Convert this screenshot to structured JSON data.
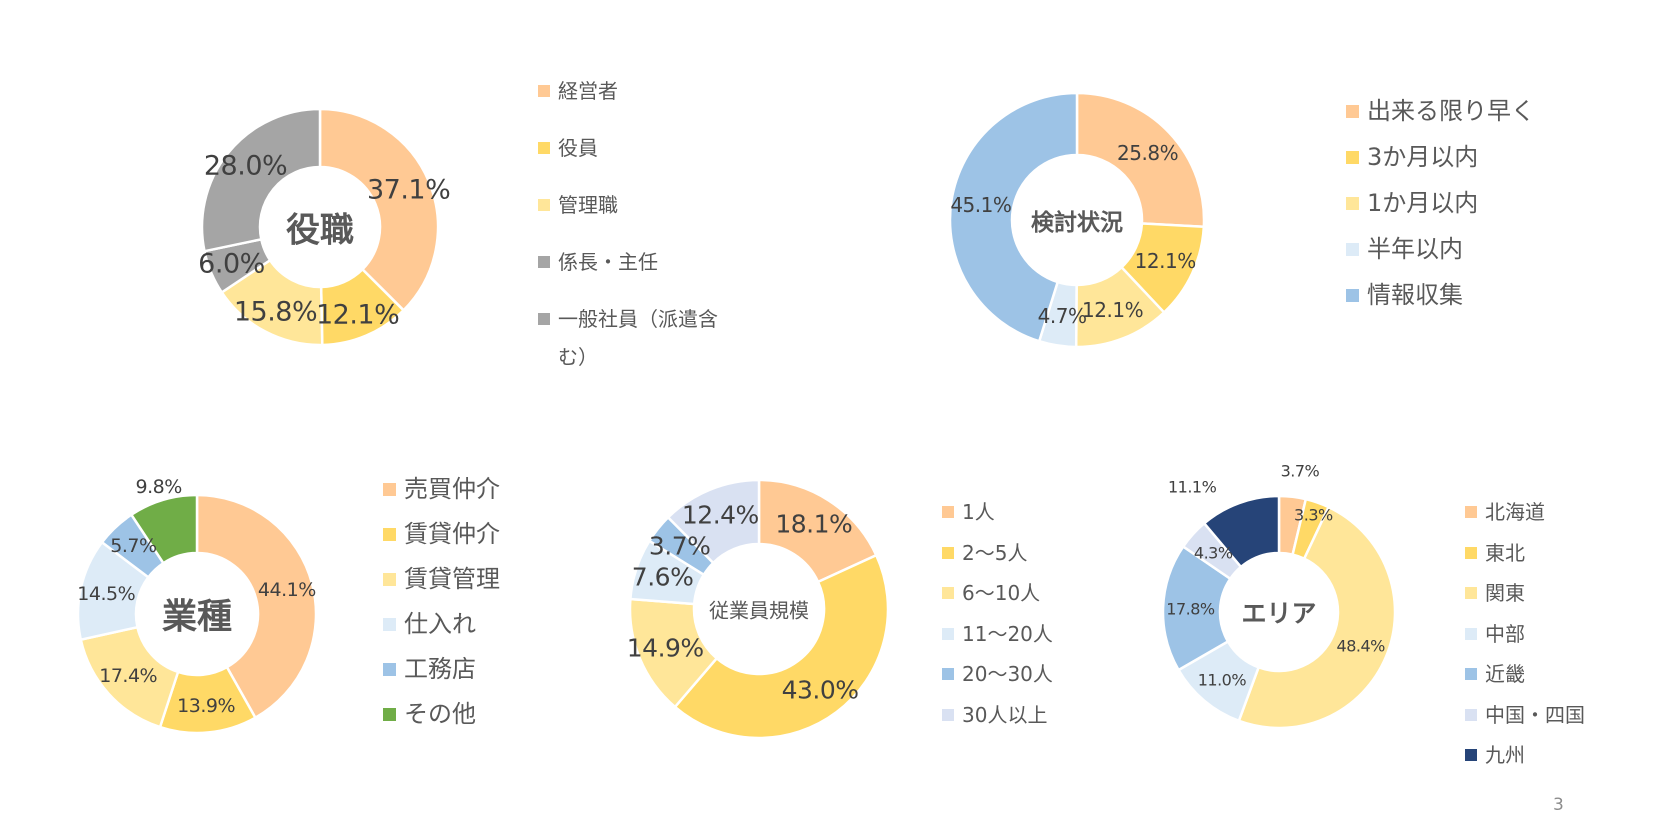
{
  "colors": {
    "peach": "#FFC994",
    "yellow": "#FFD966",
    "light_yellow": "#FFE699",
    "gray": "#A5A5A5",
    "light_blue": "#DDEBF7",
    "blue": "#9DC3E6",
    "green": "#70AD47",
    "navy": "#264478",
    "lavender": "#D9E1F2"
  },
  "chart_data": [
    {
      "type": "pie",
      "title": "役職",
      "categories": [
        "経営者",
        "役員",
        "管理職",
        "係長・主任",
        "一般社員（派遣含む）"
      ],
      "values": [
        37.1,
        12.1,
        15.8,
        6.0,
        28.0
      ],
      "labels": [
        "37.1%",
        "12.1%",
        "15.8%",
        "6.0%",
        "28.0%"
      ],
      "colors": [
        "#FFC994",
        "#FFD966",
        "#FFE699",
        "#A5A5A5",
        "#A5A5A5"
      ],
      "legend": "right"
    },
    {
      "type": "pie",
      "title": "検討状況",
      "categories": [
        "出来る限り早く",
        "3か月以内",
        "1か月以内",
        "半年以内",
        "情報収集"
      ],
      "values": [
        25.8,
        12.1,
        12.1,
        4.7,
        45.1
      ],
      "labels": [
        "25.8%",
        "12.1%",
        "12.1%",
        "4.7%",
        "45.1%"
      ],
      "colors": [
        "#FFC994",
        "#FFD966",
        "#FFE699",
        "#DDEBF7",
        "#9DC3E6"
      ],
      "legend": "right"
    },
    {
      "type": "pie",
      "title": "業種",
      "categories": [
        "売買仲介",
        "賃貸仲介",
        "賃貸管理",
        "仕入れ",
        "工務店",
        "その他"
      ],
      "values": [
        44.1,
        13.9,
        17.4,
        14.5,
        5.7,
        9.8
      ],
      "labels": [
        "44.1%",
        "13.9%",
        "17.4%",
        "14.5%",
        "5.7%",
        "9.8%"
      ],
      "colors": [
        "#FFC994",
        "#FFD966",
        "#FFE699",
        "#DDEBF7",
        "#9DC3E6",
        "#70AD47"
      ],
      "legend": "right"
    },
    {
      "type": "pie",
      "title": "従業員規模",
      "categories": [
        "1人",
        "2〜5人",
        "6〜10人",
        "11〜20人",
        "20〜30人",
        "30人以上"
      ],
      "values": [
        18.1,
        43.0,
        14.9,
        7.6,
        3.7,
        12.4
      ],
      "labels": [
        "18.1%",
        "43.0%",
        "14.9%",
        "7.6%",
        "3.7%",
        "12.4%"
      ],
      "colors": [
        "#FFC994",
        "#FFD966",
        "#FFE699",
        "#DDEBF7",
        "#9DC3E6",
        "#D9E1F2"
      ],
      "legend": "right"
    },
    {
      "type": "pie",
      "title": "エリア",
      "categories": [
        "北海道",
        "東北",
        "関東",
        "中部",
        "近畿",
        "中国・四国",
        "九州"
      ],
      "values": [
        3.7,
        3.3,
        48.4,
        11.0,
        17.8,
        4.3,
        11.1
      ],
      "labels": [
        "3.7%",
        "3.3%",
        "48.4%",
        "11.0%",
        "17.8%",
        "4.3%",
        "11.1%"
      ],
      "colors": [
        "#FFC994",
        "#FFD966",
        "#FFE699",
        "#DDEBF7",
        "#9DC3E6",
        "#D9E1F2",
        "#264478"
      ],
      "legend": "right"
    }
  ],
  "page_number": "3"
}
